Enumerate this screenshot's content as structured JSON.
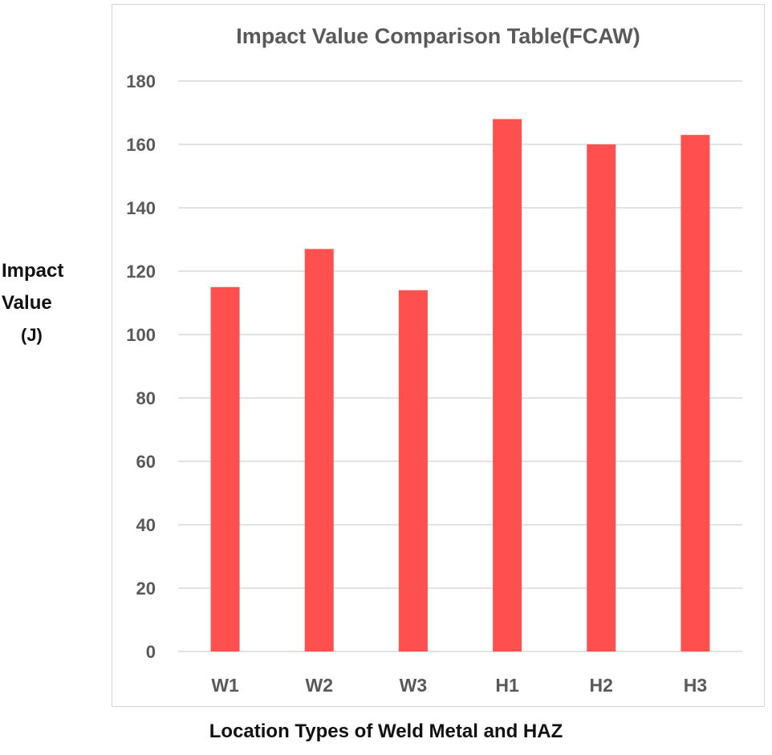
{
  "chart_data": {
    "type": "bar",
    "title": "Impact Value Comparison Table(FCAW)",
    "xlabel": "Location Types of Weld Metal and HAZ",
    "ylabel_lines": [
      "Impact",
      "Value",
      "(J)"
    ],
    "categories": [
      "W1",
      "W2",
      "W3",
      "H1",
      "H2",
      "H3"
    ],
    "values": [
      115,
      127,
      114,
      168,
      160,
      163
    ],
    "ylim": [
      0,
      180
    ],
    "yticks": [
      0,
      20,
      40,
      60,
      80,
      100,
      120,
      140,
      160,
      180
    ],
    "grid": true,
    "legend": "none",
    "bar_color": "#ff5050",
    "gridline_color": "#d9d9d9",
    "tick_label_color": "#595959"
  }
}
